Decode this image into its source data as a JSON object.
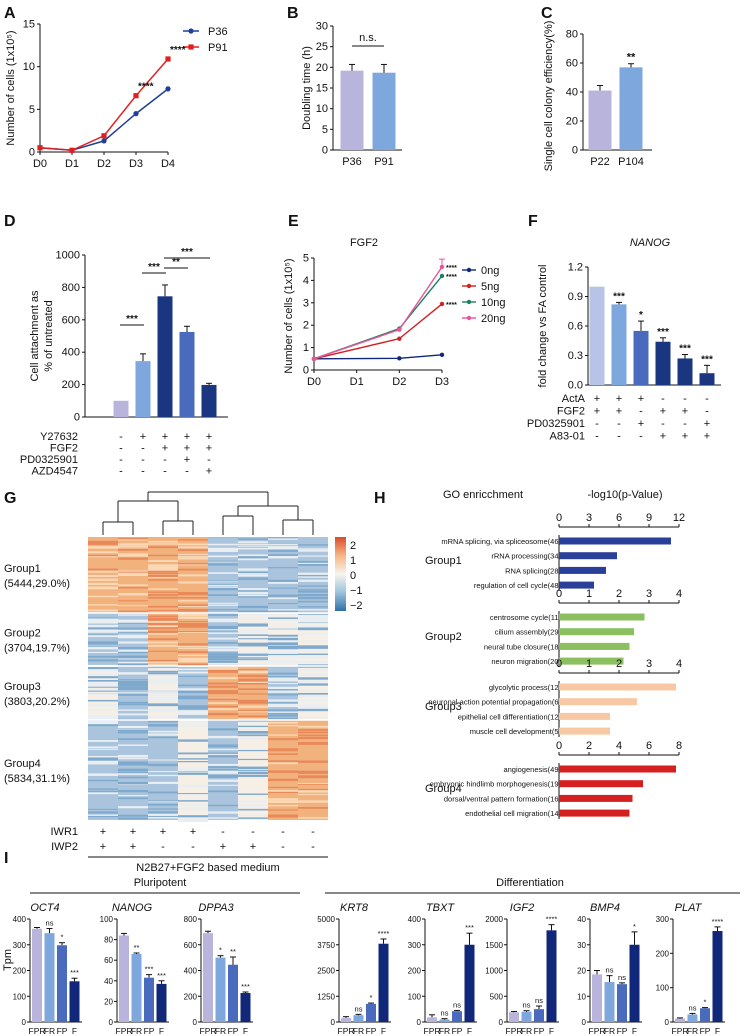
{
  "colors": {
    "p36": "#1f3f99",
    "p91": "#e02020",
    "lav": "#b9b4dc",
    "blue": "#7ea7de",
    "navy": "#1a3680",
    "dnavy": "#10277a",
    "mid": "#4a6bbd",
    "lt": "#b7c4e6",
    "green": "#8cbf5f",
    "peach": "#f8c8a4",
    "red": "#d42020",
    "teal": "#1a8060",
    "pink": "#e8559c",
    "gcol": "#2a3f99"
  },
  "panels": [
    {
      "id": "A",
      "label": "A"
    },
    {
      "id": "B",
      "label": "B"
    },
    {
      "id": "C",
      "label": "C"
    },
    {
      "id": "D",
      "label": "D"
    },
    {
      "id": "E",
      "label": "E"
    },
    {
      "id": "F",
      "label": "F"
    },
    {
      "id": "G",
      "label": "G"
    },
    {
      "id": "H",
      "label": "H"
    },
    {
      "id": "I",
      "label": "I"
    }
  ],
  "chart_data": [
    {
      "id": "A",
      "type": "line",
      "xlabel": "",
      "ylabel": "Number of cells (1x10⁵)",
      "categories": [
        "D0",
        "D1",
        "D2",
        "D3",
        "D4"
      ],
      "ylim": [
        0,
        15
      ],
      "yticks": [
        "0",
        "5",
        "10",
        "15"
      ],
      "series": [
        {
          "name": "P36",
          "values": [
            0.5,
            0.2,
            1.3,
            4.5,
            7.4
          ],
          "color_key": "p36"
        },
        {
          "name": "P91",
          "values": [
            0.5,
            0.2,
            1.9,
            6.6,
            10.9
          ],
          "color_key": "p91"
        }
      ],
      "annotations": [
        {
          "at": "D3",
          "text": "****"
        },
        {
          "at": "D4",
          "text": "****"
        }
      ]
    },
    {
      "id": "B",
      "type": "bar",
      "ylabel": "Doubling time (h)",
      "categories": [
        "P36",
        "P91"
      ],
      "values": [
        19.2,
        18.7
      ],
      "errors": [
        1.5,
        2.0
      ],
      "ylim": [
        0,
        30
      ],
      "yticks": [
        "0",
        "5",
        "10",
        "15",
        "20",
        "25",
        "30"
      ],
      "colors": [
        "lav",
        "blue"
      ],
      "annotation": "n.s."
    },
    {
      "id": "C",
      "type": "bar",
      "ylabel": "Single cell colony efficiency(%)",
      "categories": [
        "P22",
        "P104"
      ],
      "values": [
        41,
        57
      ],
      "errors": [
        3.5,
        2.5
      ],
      "ylim": [
        0,
        80
      ],
      "yticks": [
        "0",
        "20",
        "40",
        "60",
        "80"
      ],
      "colors": [
        "lav",
        "blue"
      ],
      "annotation": "**"
    },
    {
      "id": "D",
      "type": "bar",
      "ylabel": "Cell attachment as % of untreated",
      "values": [
        100,
        345,
        745,
        525,
        198
      ],
      "errors": [
        0,
        45,
        70,
        35,
        10
      ],
      "ylim": [
        0,
        1000
      ],
      "yticks": [
        "0",
        "200",
        "400",
        "600",
        "800",
        "1000"
      ],
      "colors": [
        "lav",
        "blue",
        "navy",
        "mid",
        "navy"
      ],
      "sig": [
        {
          "from": 0,
          "to": 1,
          "text": "***"
        },
        {
          "from": 1,
          "to": 2,
          "text": "***"
        },
        {
          "from": 2,
          "to": 3,
          "text": "**"
        },
        {
          "from": 2,
          "to": 4,
          "text": "***"
        }
      ],
      "conditions": [
        {
          "name": "Y27632",
          "signs": [
            "-",
            "+",
            "+",
            "+",
            "+"
          ]
        },
        {
          "name": "FGF2",
          "signs": [
            "-",
            "-",
            "+",
            "+",
            "+"
          ]
        },
        {
          "name": "PD0325901",
          "signs": [
            "-",
            "-",
            "-",
            "+",
            "-"
          ]
        },
        {
          "name": "AZD4547",
          "signs": [
            "-",
            "-",
            "-",
            "-",
            "+"
          ]
        }
      ]
    },
    {
      "id": "E",
      "type": "line",
      "title": "FGF2",
      "ylabel": "Number of cells (1x10⁵)",
      "x": [
        0,
        1,
        2,
        3
      ],
      "categories": [
        "D0",
        "D1",
        "D2",
        "D3"
      ],
      "ylim": [
        0,
        5
      ],
      "yticks": [
        "0",
        "1",
        "2",
        "3",
        "4",
        "5"
      ],
      "series": [
        {
          "name": "0ng",
          "x": [
            0,
            2,
            3
          ],
          "values": [
            0.5,
            0.52,
            0.68
          ],
          "color_key": "dnavy"
        },
        {
          "name": "5ng",
          "x": [
            0,
            2,
            3
          ],
          "values": [
            0.5,
            1.4,
            2.95
          ],
          "color_key": "red"
        },
        {
          "name": "10ng",
          "x": [
            0,
            2,
            3
          ],
          "values": [
            0.5,
            1.85,
            4.2
          ],
          "color_key": "teal"
        },
        {
          "name": "20ng",
          "x": [
            0,
            2,
            3
          ],
          "values": [
            0.5,
            1.8,
            4.6
          ],
          "color_key": "pink"
        }
      ],
      "annotations": [
        "****",
        "****",
        "****"
      ]
    },
    {
      "id": "F",
      "type": "bar",
      "title": "NANOG",
      "ylabel": "fold change vs FA control",
      "values": [
        1.0,
        0.82,
        0.55,
        0.44,
        0.27,
        0.12
      ],
      "errors": [
        0,
        0.02,
        0.1,
        0.04,
        0.04,
        0.08
      ],
      "ylim": [
        0,
        1.2
      ],
      "yticks": [
        "0.0",
        "0.3",
        "0.6",
        "0.9",
        "1.2"
      ],
      "colors": [
        "lt",
        "blue",
        "mid",
        "navy",
        "navy",
        "navy"
      ],
      "annots": [
        "",
        "***",
        "*",
        "***",
        "***",
        "***"
      ],
      "conditions": [
        {
          "name": "ActA",
          "signs": [
            "+",
            "+",
            "+",
            "-",
            "-",
            "-"
          ]
        },
        {
          "name": "FGF2",
          "signs": [
            "+",
            "+",
            "-",
            "+",
            "+",
            "-"
          ]
        },
        {
          "name": "PD0325901",
          "signs": [
            "-",
            "-",
            "+",
            "-",
            "-",
            "+"
          ]
        },
        {
          "name": "A83-01",
          "signs": [
            "-",
            "-",
            "-",
            "+",
            "+",
            "+"
          ]
        }
      ]
    },
    {
      "id": "G",
      "type": "heatmap",
      "groups": [
        {
          "name": "Group1",
          "count": "(5444,29.0%)"
        },
        {
          "name": "Group2",
          "count": "(3704,19.7%)"
        },
        {
          "name": "Group3",
          "count": "(3803,20.2%)"
        },
        {
          "name": "Group4",
          "count": "(5834,31.1%)"
        }
      ],
      "colorbar_ticks": [
        "2",
        "1",
        "0",
        "−1",
        "−2"
      ],
      "conditions": [
        {
          "name": "IWR1",
          "signs": [
            "+",
            "+",
            "+",
            "+",
            "-",
            "-",
            "-",
            "-"
          ]
        },
        {
          "name": "IWP2",
          "signs": [
            "+",
            "+",
            "-",
            "-",
            "+",
            "+",
            "-",
            "-"
          ]
        }
      ],
      "footer": "N2B27+FGF2 based medium"
    },
    {
      "id": "H",
      "type": "bar",
      "orientation": "horizontal",
      "header_left": "GO enricchment",
      "header_right": "-log10(p-Value)",
      "groups": [
        {
          "name": "Group1",
          "color_key": "gcol",
          "max": 12,
          "ticks": [
            "0",
            "3",
            "6",
            "9",
            "12"
          ],
          "terms": [
            "mRNA splicing, via spliceosome(46)",
            "rRNA processing(34)",
            "RNA splicing(28)",
            "regulation of cell cycle(48)"
          ],
          "values": [
            11.2,
            5.8,
            4.7,
            3.5
          ]
        },
        {
          "name": "Group2",
          "color_key": "green",
          "max": 4,
          "ticks": [
            "0",
            "1",
            "2",
            "3",
            "4"
          ],
          "terms": [
            "centrosome cycle(11)",
            "cilium assembly(29)",
            "neural tube closure(18)",
            "neuron migration(20)"
          ],
          "values": [
            2.85,
            2.5,
            2.35,
            2.15
          ]
        },
        {
          "name": "Group3",
          "color_key": "peach",
          "max": 4,
          "ticks": [
            "0",
            "1",
            "2",
            "3",
            "4"
          ],
          "terms": [
            "glycolytic process(12)",
            "neuronal action potential propagation(6)",
            "epithelial cell differentiation(12)",
            "muscle cell development(5)"
          ],
          "values": [
            3.9,
            2.6,
            1.7,
            1.7
          ]
        },
        {
          "name": "Group4",
          "color_key": "red",
          "max": 8,
          "ticks": [
            "0",
            "2",
            "4",
            "6",
            "8"
          ],
          "terms": [
            "angiogenesis(49)",
            "embryonic hindlimb morphogenesis(19)",
            "dorsal/ventral pattern formation(16)",
            "endothelial cell migration(14)"
          ],
          "values": [
            7.8,
            5.6,
            4.9,
            4.7
          ]
        }
      ]
    },
    {
      "id": "I",
      "type": "bar",
      "ylabel": "Tpm",
      "section_left": "Pluripotent",
      "section_right": "Differentiation",
      "categories": [
        "FPR",
        "FR",
        "FP",
        "F"
      ],
      "colors": [
        "lav",
        "blue",
        "mid",
        "dnavy"
      ],
      "genes": [
        {
          "name": "OCT4",
          "max": 400,
          "ticks": [
            "0",
            "100",
            "200",
            "300",
            "400"
          ],
          "values": [
            362,
            345,
            298,
            158
          ],
          "errors": [
            5,
            18,
            10,
            12
          ],
          "annots": [
            "",
            "ns",
            "*",
            "***"
          ]
        },
        {
          "name": "NANOG",
          "max": 100,
          "ticks": [
            "0",
            "20",
            "40",
            "60",
            "80",
            "100"
          ],
          "values": [
            84,
            66,
            43,
            37
          ],
          "errors": [
            2,
            1,
            3,
            3
          ],
          "annots": [
            "",
            "**",
            "***",
            "***"
          ]
        },
        {
          "name": "DPPA3",
          "max": 800,
          "ticks": [
            "0",
            "200",
            "400",
            "600",
            "800"
          ],
          "values": [
            690,
            500,
            445,
            225
          ],
          "errors": [
            15,
            15,
            60,
            8
          ],
          "annots": [
            "",
            "*",
            "**",
            "***"
          ]
        },
        {
          "name": "KRT8",
          "max": 5000,
          "ticks": [
            "0",
            "1250",
            "2500",
            "3750",
            "5000"
          ],
          "values": [
            200,
            330,
            880,
            3800
          ],
          "errors": [
            60,
            40,
            40,
            230
          ],
          "annots": [
            "",
            "ns",
            "*",
            "****"
          ]
        },
        {
          "name": "TBXT",
          "max": 400,
          "ticks": [
            "0",
            "100",
            "200",
            "300",
            "400"
          ],
          "values": [
            18,
            10,
            42,
            300
          ],
          "errors": [
            10,
            3,
            3,
            45
          ],
          "annots": [
            "",
            "ns",
            "ns",
            "***"
          ]
        },
        {
          "name": "IGF2",
          "max": 2000,
          "ticks": [
            "0",
            "500",
            "1000",
            "1500",
            "2000"
          ],
          "values": [
            190,
            200,
            250,
            1780
          ],
          "errors": [
            15,
            20,
            60,
            110
          ],
          "annots": [
            "",
            "ns",
            "ns",
            "****"
          ]
        },
        {
          "name": "BMP4",
          "max": 40,
          "ticks": [
            "0",
            "10",
            "20",
            "30",
            "40"
          ],
          "values": [
            18.5,
            15.5,
            14.7,
            30
          ],
          "errors": [
            1.5,
            2.5,
            0.5,
            5
          ],
          "annots": [
            "",
            "ns",
            "ns",
            "*"
          ]
        },
        {
          "name": "PLAT",
          "max": 300,
          "ticks": [
            "0",
            "100",
            "200",
            "300"
          ],
          "values": [
            10,
            22,
            40,
            265
          ],
          "errors": [
            2,
            3,
            2,
            12
          ],
          "annots": [
            "",
            "ns",
            "*",
            "****"
          ]
        }
      ]
    }
  ]
}
